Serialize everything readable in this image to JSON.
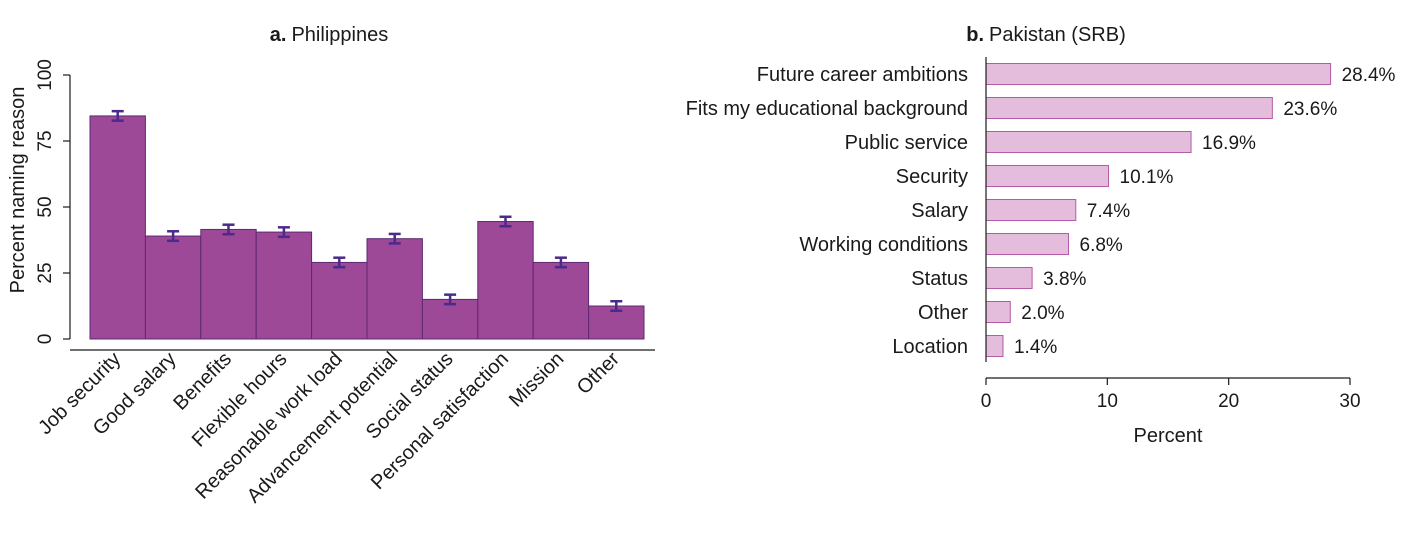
{
  "colors": {
    "bar_a": "#9e4898",
    "bar_a_stroke": "#5d2a73",
    "errorbar": "#4a2a8a",
    "bar_b": "#e3bddb",
    "bar_b_stroke": "#b45aa6",
    "axis": "#1a1a1a"
  },
  "chart_data": [
    {
      "type": "bar",
      "title_prefix": "a.",
      "title": "Philippines",
      "xlabel": "",
      "ylabel": "Percent naming reason",
      "ylim": [
        0,
        100
      ],
      "yticks": [
        "0",
        "25",
        "50",
        "75",
        "100"
      ],
      "categories": [
        "Job security",
        "Good salary",
        "Benefits",
        "Flexible hours",
        "Reasonable work load",
        "Advancement potential",
        "Social status",
        "Personal satisfaction",
        "Mission",
        "Other"
      ],
      "values": [
        84.5,
        39,
        41.5,
        40.5,
        29,
        38,
        15,
        44.5,
        29,
        12.5
      ],
      "error": [
        1.8,
        1.8,
        1.8,
        1.8,
        1.8,
        1.8,
        1.8,
        1.8,
        1.8,
        1.8
      ],
      "grid": false
    },
    {
      "type": "bar",
      "orientation": "horizontal",
      "title_prefix": "b.",
      "title": "Pakistan (SRB)",
      "xlabel": "Percent",
      "ylabel": "",
      "xlim": [
        0,
        30
      ],
      "xticks": [
        "0",
        "10",
        "20",
        "30"
      ],
      "categories": [
        "Future career ambitions",
        "Fits my educational background",
        "Public service",
        "Security",
        "Salary",
        "Working conditions",
        "Status",
        "Other",
        "Location"
      ],
      "values": [
        28.4,
        23.6,
        16.9,
        10.1,
        7.4,
        6.8,
        3.8,
        2.0,
        1.4
      ],
      "labels": [
        "28.4%",
        "23.6%",
        "16.9%",
        "10.1%",
        "7.4%",
        "6.8%",
        "3.8%",
        "2.0%",
        "1.4%"
      ],
      "grid": false
    }
  ]
}
